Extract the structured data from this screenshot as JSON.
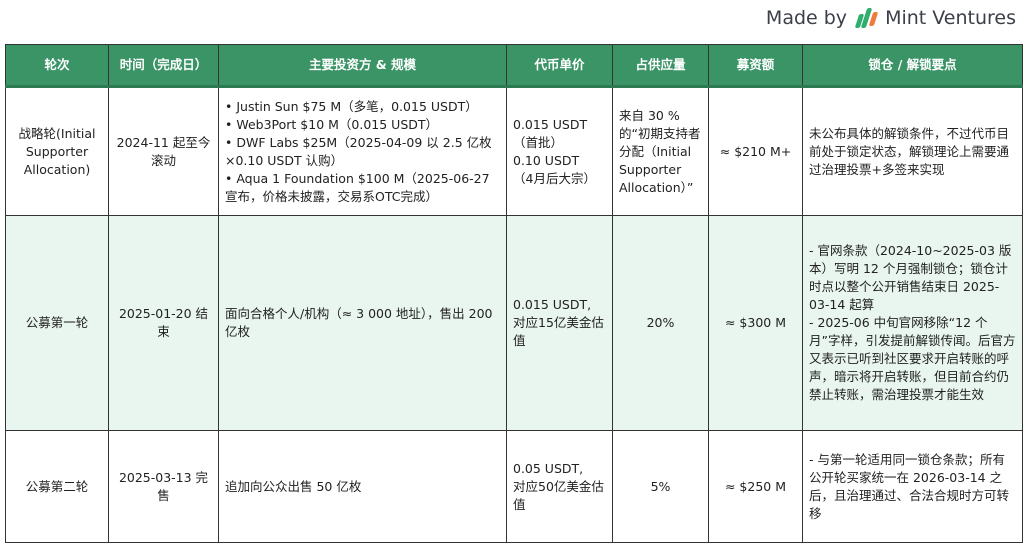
{
  "brand": {
    "made_by": "Made by",
    "name": "Mint Ventures",
    "colors": {
      "green": "#2fae6e",
      "orange": "#f07a3a"
    }
  },
  "header_color": "#3a9466",
  "columns": [
    "轮次",
    "时间（完成日）",
    "主要投资方 & 规模",
    "代币单价",
    "占供应量",
    "募资额",
    "锁仓 / 解锁要点"
  ],
  "rows": [
    {
      "round": "战略轮(Initial Supporter Allocation)",
      "time": "2024-11 起至今滚动",
      "investors": [
        "• Justin Sun $75 M（多笔，0.015 USDT）",
        "• Web3Port $10 M（0.015 USDT）",
        "• DWF Labs $25M（2025-04-09 以 2.5 亿枚×0.10 USDT 认购）",
        "• Aqua 1 Foundation $100 M（2025-06-27宣布，价格未披露，交易系OTC完成）"
      ],
      "price": [
        "0.015 USDT",
        "（首批）",
        "0.10 USDT",
        "（4月后大宗）"
      ],
      "supply": "来自 30 %的“初期支持者分配（Initial Supporter Allocation）”",
      "raised": "≈ $210 M+",
      "lock": [
        "未公布具体的解锁条件，不过代币目前处于锁定状态，解锁理论上需要通过治理投票+多签来实现"
      ]
    },
    {
      "round": "公募第一轮",
      "time": "2025-01-20 结束",
      "investors": [
        "面向合格个人/机构（≈ 3 000 地址），售出 200 亿枚"
      ],
      "price": [
        "0.015 USDT,",
        "对应15亿美金估值"
      ],
      "supply": "20%",
      "raised": "≈ $300 M",
      "lock": [
        "- 官网条款（2024-10~2025-03 版本）写明 12 个月强制锁仓；锁仓计时点以整个公开销售结束日 2025-03-14 起算",
        "- 2025-06 中旬官网移除“12 个月”字样，引发提前解锁传闻。后官方又表示已听到社区要求开启转账的呼声，暗示将开启转账，但目前合约仍禁止转账，需治理投票才能生效"
      ]
    },
    {
      "round": "公募第二轮",
      "time": "2025-03-13 完售",
      "investors": [
        "追加向公众出售 50 亿枚"
      ],
      "price": [
        "0.05 USDT,",
        "对应50亿美金估值"
      ],
      "supply": "5%",
      "raised": "≈ $250 M",
      "lock": [
        "- 与第一轮适用同一锁仓条款；所有公开轮买家统一在 2026-03-14 之后，且治理通过、合法合规时方可转移"
      ]
    }
  ]
}
